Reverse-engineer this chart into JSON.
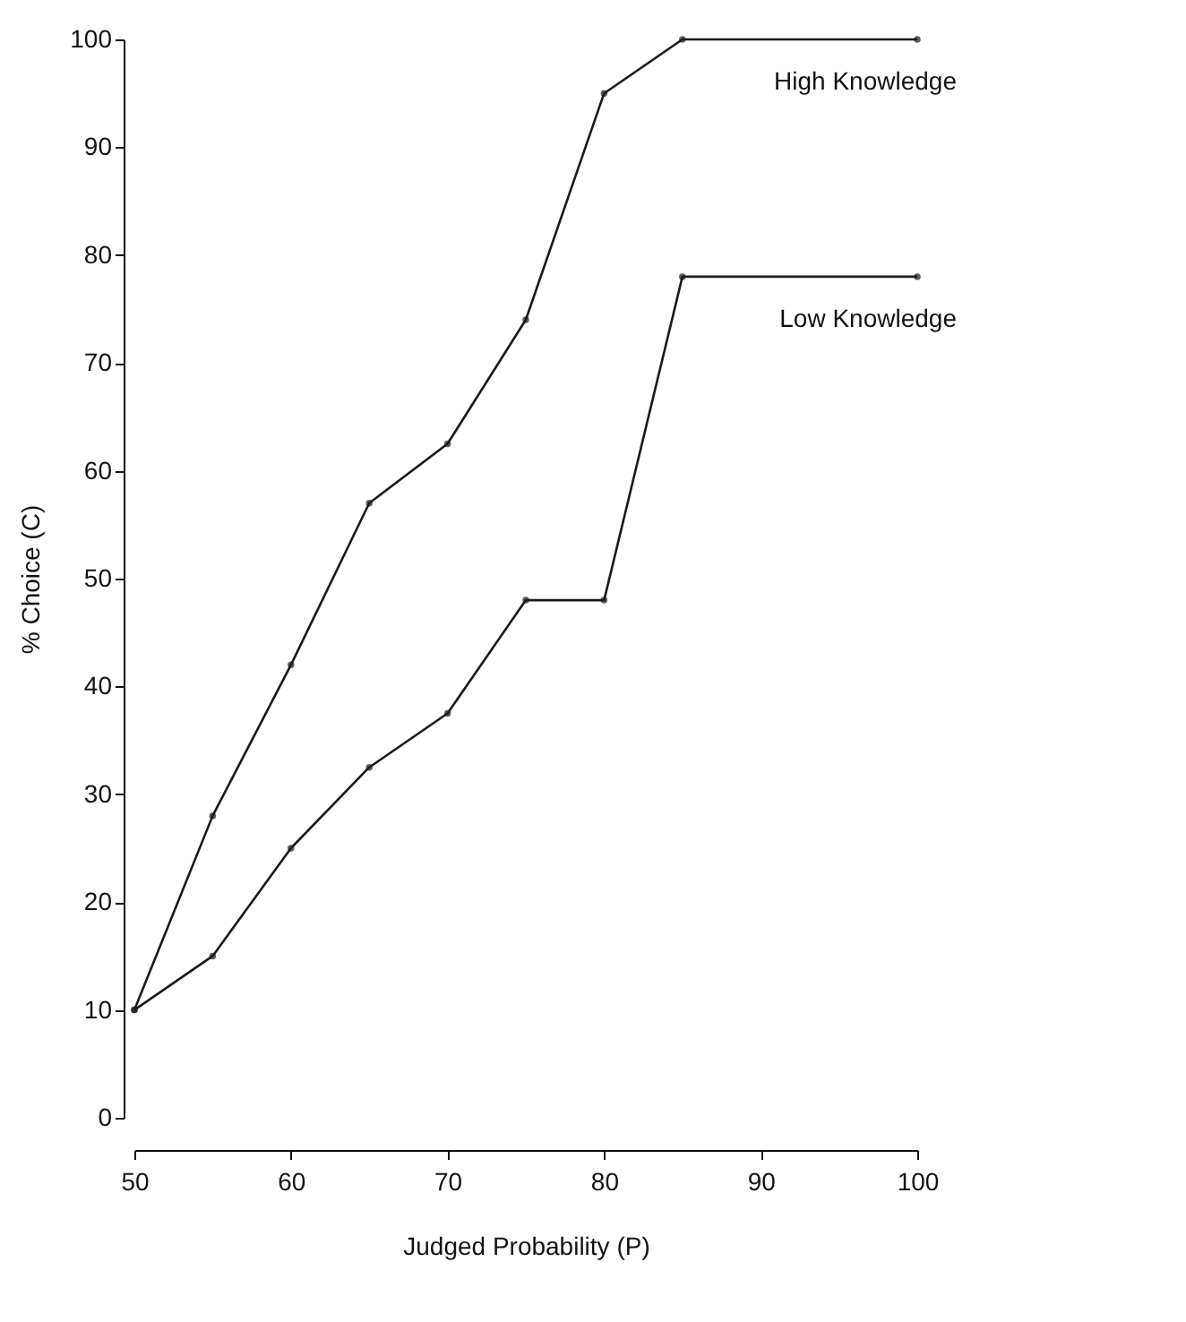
{
  "chart_data": {
    "type": "line",
    "xlabel": "Judged Probability (P)",
    "ylabel": "% Choice (C)",
    "x": [
      50,
      55,
      60,
      65,
      70,
      75,
      80,
      85,
      100
    ],
    "series": [
      {
        "name": "High Knowledge",
        "color": "#1a1a1a",
        "values": [
          10,
          28,
          42,
          57,
          62.5,
          74,
          95,
          100,
          100
        ]
      },
      {
        "name": "Low Knowledge",
        "color": "#1a1a1a",
        "values": [
          10,
          15,
          25,
          32.5,
          37.5,
          48,
          48,
          78,
          78
        ]
      }
    ],
    "xlim": [
      50,
      100
    ],
    "xticks": [
      50,
      60,
      70,
      80,
      90,
      100
    ],
    "ylim": [
      0,
      100
    ],
    "yticks": [
      0,
      10,
      20,
      30,
      40,
      50,
      60,
      70,
      80,
      90,
      100
    ],
    "grid": false,
    "legend": false,
    "marker": "circle",
    "line_style": "solid"
  }
}
